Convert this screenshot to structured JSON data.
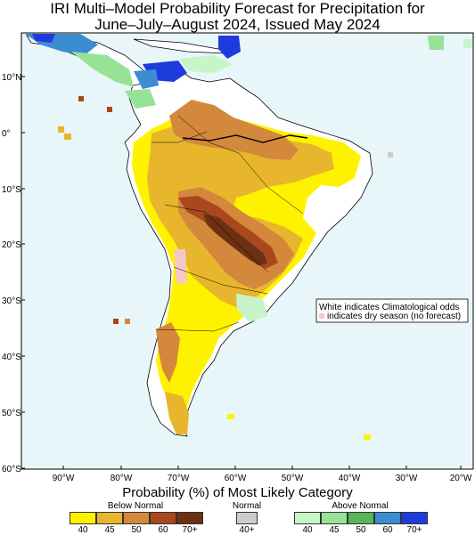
{
  "title": {
    "line1": "IRI Multi–Model Probability Forecast for Precipitation for",
    "line2": "June–July–August 2024, Issued May 2024"
  },
  "map": {
    "lat_labels": [
      "10°N",
      "0°",
      "10°S",
      "20°S",
      "30°S",
      "40°S",
      "50°S",
      "60°S"
    ],
    "lon_labels": [
      "90°W",
      "80°W",
      "70°W",
      "60°W",
      "50°W",
      "40°W",
      "30°W",
      "20°W"
    ],
    "note_line1": "White indicates Climatological odds",
    "note_line2": "indicates dry season (no forecast)"
  },
  "legend": {
    "title": "Probability (%) of Most Likely Category",
    "below": {
      "label": "Below Normal",
      "ticks": [
        "40",
        "45",
        "50",
        "60",
        "70+"
      ],
      "colors": [
        "#fff200",
        "#e8b62c",
        "#d4883c",
        "#a8481c",
        "#6e3012"
      ]
    },
    "normal": {
      "label": "Normal",
      "ticks": [
        "40+"
      ],
      "colors": [
        "#cccccc"
      ]
    },
    "above": {
      "label": "Above Normal",
      "ticks": [
        "40",
        "45",
        "50",
        "60",
        "70+"
      ],
      "colors": [
        "#c8f5c8",
        "#96e396",
        "#5ab45a",
        "#3c8cd2",
        "#1e3cdc"
      ]
    }
  },
  "colors": {
    "ocean": "#e8f6fa",
    "land_climatology": "#ffffff",
    "dry_season": "#f5c8c8"
  }
}
